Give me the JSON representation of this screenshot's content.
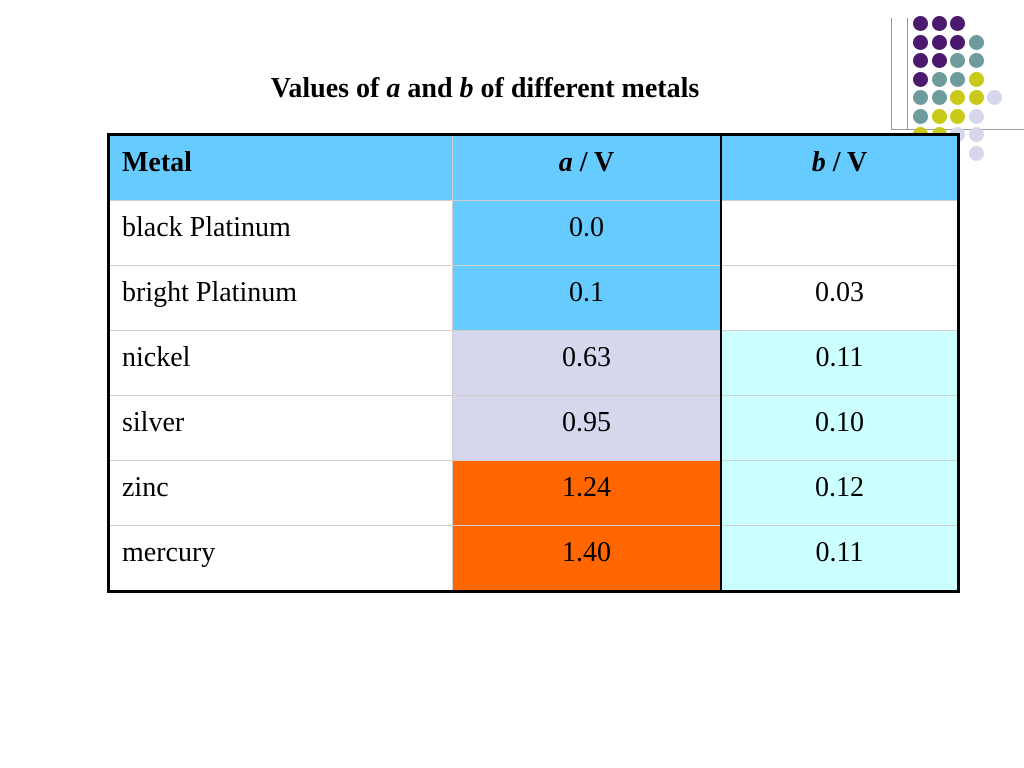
{
  "title": {
    "part1": "Values of ",
    "var_a": "a",
    "part2": " and ",
    "var_b": "b",
    "part3": " of different metals"
  },
  "table": {
    "header": {
      "metal": "Metal",
      "a_var": "a",
      "a_unit": " / V",
      "b_var": "b",
      "b_unit": " / V",
      "bg": "#66ccff"
    },
    "rows": [
      {
        "metal": "black Platinum",
        "a": "0.0",
        "b": "",
        "a_bg": "#66ccff",
        "b_bg": "#ffffff"
      },
      {
        "metal": "bright Platinum",
        "a": "0.1",
        "b": "0.03",
        "a_bg": "#66ccff",
        "b_bg": "#ffffff"
      },
      {
        "metal": "nickel",
        "a": "0.63",
        "b": "0.11",
        "a_bg": "#d6d6ec",
        "b_bg": "#ccffff"
      },
      {
        "metal": "silver",
        "a": "0.95",
        "b": "0.10",
        "a_bg": "#d6d6ec",
        "b_bg": "#ccffff"
      },
      {
        "metal": "zinc",
        "a": "1.24",
        "b": "0.12",
        "a_bg": "#ff6600",
        "b_bg": "#ccffff"
      },
      {
        "metal": "mercury",
        "a": "1.40",
        "b": "0.11",
        "a_bg": "#ff6600",
        "b_bg": "#ccffff"
      }
    ]
  },
  "decoration": {
    "dot_colors": {
      "purple": "#4b1a6e",
      "teal": "#6e9c9c",
      "yellow": "#c9c91a",
      "lavender": "#d6d6ec"
    },
    "dot_grid": [
      [
        "purple",
        "purple",
        "purple",
        null,
        null,
        null
      ],
      [
        "purple",
        "purple",
        "purple",
        "teal",
        null,
        null
      ],
      [
        "purple",
        "purple",
        "teal",
        "teal",
        null,
        null
      ],
      [
        "purple",
        "teal",
        "teal",
        "yellow",
        null,
        null
      ],
      [
        "teal",
        "teal",
        "yellow",
        "yellow",
        "lavender",
        null
      ],
      [
        "teal",
        "yellow",
        "yellow",
        "lavender",
        null,
        null
      ],
      [
        "yellow",
        "yellow",
        "lavender",
        "lavender",
        null,
        null
      ],
      [
        null,
        null,
        null,
        "lavender",
        null,
        null
      ]
    ]
  }
}
